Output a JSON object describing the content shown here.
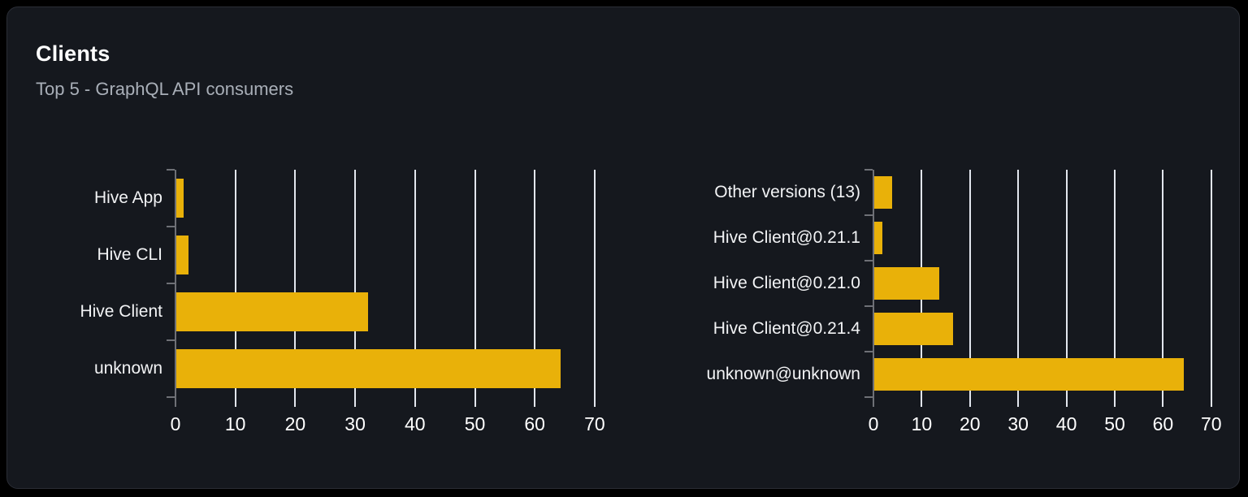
{
  "card": {
    "title": "Clients",
    "subtitle": "Top 5 - GraphQL API consumers"
  },
  "theme": {
    "page_bg": "#000000",
    "card_bg": "#15181e",
    "card_border": "#2a2d35",
    "bar_color": "#e9b109",
    "grid_color": "#e2e6ee",
    "axis_color": "#6e7076",
    "category_label_color": "#f2f3f5",
    "tick_label_color": "#ffffff",
    "subtitle_color": "#a9afb8"
  },
  "chart_data": [
    {
      "type": "bar",
      "orientation": "horizontal",
      "name": "clients-by-name",
      "categories": [
        "Hive App",
        "Hive CLI",
        "Hive Client",
        "unknown"
      ],
      "values": [
        1.4,
        2.2,
        32.2,
        64.3
      ],
      "x_ticks": [
        0,
        10,
        20,
        30,
        40,
        50,
        60,
        70
      ],
      "xlim": [
        0,
        74
      ],
      "grid": true,
      "legend": "none",
      "title": "",
      "xlabel": "",
      "ylabel": ""
    },
    {
      "type": "bar",
      "orientation": "horizontal",
      "name": "clients-by-version",
      "categories": [
        "Other versions (13)",
        "Hive Client@0.21.1",
        "Hive Client@0.21.0",
        "Hive Client@0.21.4",
        "unknown@unknown"
      ],
      "values": [
        3.8,
        1.8,
        13.7,
        16.5,
        64.3
      ],
      "x_ticks": [
        0,
        10,
        20,
        30,
        40,
        50,
        60,
        70
      ],
      "xlim": [
        0,
        74
      ],
      "grid": true,
      "legend": "none",
      "title": "",
      "xlabel": "",
      "ylabel": ""
    }
  ]
}
